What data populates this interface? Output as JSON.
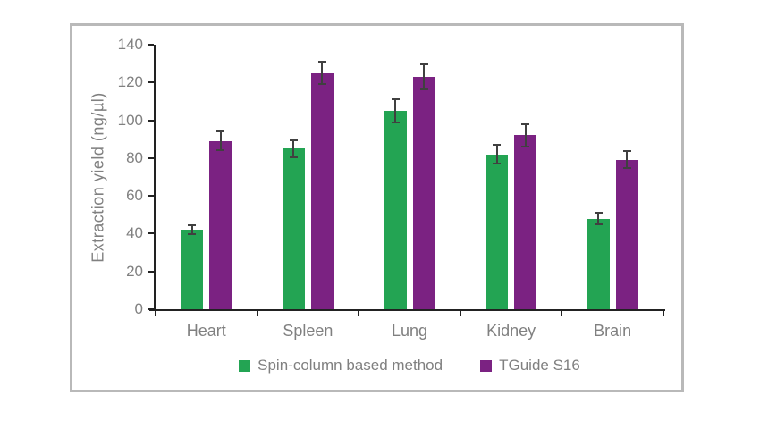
{
  "window": {
    "background": "#ffffff"
  },
  "chart_data": {
    "type": "bar",
    "title": "",
    "xlabel": "",
    "ylabel": "Extraction yield (ng/µl)",
    "ylim": [
      0,
      140
    ],
    "ytick_step": 20,
    "yticks": [
      0,
      20,
      40,
      60,
      80,
      100,
      120,
      140
    ],
    "categories": [
      "Heart",
      "Spleen",
      "Lung",
      "Kidney",
      "Brain"
    ],
    "series": [
      {
        "name": "Spin-column based method",
        "color": "#23a453",
        "values": [
          42,
          85,
          105,
          82,
          48
        ],
        "errors": [
          2.5,
          4.5,
          6,
          5,
          3
        ]
      },
      {
        "name": "TGuide S16",
        "color": "#7b2282",
        "values": [
          89,
          125,
          123,
          92,
          79
        ],
        "errors": [
          5,
          6,
          6.5,
          6,
          4.5
        ]
      }
    ],
    "error_bars": true,
    "grid": false,
    "legend_position": "bottom"
  },
  "colors": {
    "panel_border": "#b9b9b9",
    "axis": "#222222",
    "error_bar": "#404040",
    "text": "#808080",
    "green": "#23a453",
    "purple": "#7b2282"
  }
}
